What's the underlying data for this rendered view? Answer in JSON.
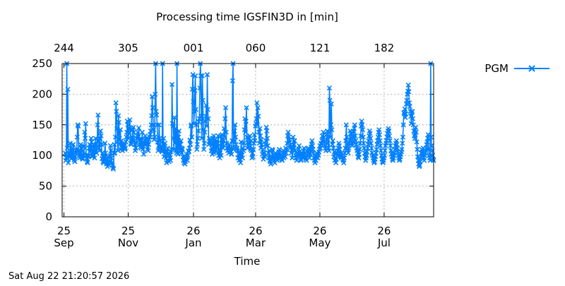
{
  "chart_data": {
    "type": "line",
    "title": "Processing time IGSFIN3D in [min]",
    "xlabel": "Time",
    "ylabel": "",
    "ylim": [
      0,
      250
    ],
    "xlim": [
      -1.7,
      351
    ],
    "x_unit": "days since 2025-09-25",
    "yticks": [
      0,
      50,
      100,
      150,
      200,
      250
    ],
    "x_bottom_ticks": [
      {
        "pos": 0,
        "day": "25",
        "month": "Sep"
      },
      {
        "pos": 61,
        "day": "25",
        "month": "Nov"
      },
      {
        "pos": 123,
        "day": "26",
        "month": "Jan"
      },
      {
        "pos": 182,
        "day": "26",
        "month": "Mar"
      },
      {
        "pos": 243,
        "day": "26",
        "month": "May"
      },
      {
        "pos": 304,
        "day": "26",
        "month": "Jul"
      }
    ],
    "x_top_ticks": [
      {
        "pos": 0,
        "label": "244"
      },
      {
        "pos": 61,
        "label": "305"
      },
      {
        "pos": 123,
        "label": "001"
      },
      {
        "pos": 182,
        "label": "060"
      },
      {
        "pos": 243,
        "label": "121"
      },
      {
        "pos": 304,
        "label": "182"
      }
    ],
    "grid": true,
    "legend": "right",
    "series": [
      {
        "name": "PGM",
        "color": "#0080ff",
        "marker": "x",
        "y": [
          104,
          92,
          96,
          250,
          112,
          208,
          88,
          102,
          97,
          104,
          120,
          100,
          95,
          110,
          112,
          100,
          118,
          96,
          93,
          90,
          98,
          104,
          108,
          110,
          130,
          150,
          148,
          106,
          100,
          96,
          104,
          118,
          112,
          100,
          96,
          94,
          108,
          100,
          115,
          138,
          128,
          152,
          100,
          96,
          90,
          88,
          98,
          100,
          112,
          118,
          106,
          110,
          128,
          122,
          98,
          100,
          105,
          118,
          112,
          96,
          106,
          128,
          118,
          104,
          115,
          150,
          166,
          124,
          112,
          108,
          128,
          140,
          132,
          118,
          95,
          104,
          90,
          88,
          100,
          96,
          120,
          104,
          92,
          86,
          94,
          82,
          98,
          88,
          84,
          90,
          100,
          116,
          108,
          96,
          88,
          84,
          80,
          78,
          104,
          118,
          104,
          130,
          186,
          172,
          144,
          122,
          108,
          165,
          154,
          128,
          118,
          142,
          110,
          124,
          118,
          108,
          112,
          118,
          114,
          120,
          110,
          112,
          122,
          130,
          138,
          156,
          150,
          128,
          136,
          144,
          158,
          142,
          120,
          118,
          126,
          130,
          142,
          146,
          138,
          124,
          118,
          108,
          112,
          120,
          128,
          132,
          138,
          130,
          145,
          126,
          118,
          114,
          128,
          112,
          120,
          138,
          110,
          120,
          102,
          118,
          125,
          132,
          118,
          124,
          128,
          110,
          124,
          108,
          118,
          126,
          130,
          134,
          140,
          150,
          165,
          196,
          178,
          150,
          142,
          126,
          130,
          200,
          250,
          172,
          166,
          150,
          122,
          108,
          116,
          150,
          128,
          124,
          115,
          110,
          108,
          106,
          250,
          118,
          128,
          98,
          112,
          120,
          104,
          96,
          88,
          106,
          112,
          102,
          104,
          90,
          100,
          96,
          92,
          106,
          110,
          216,
          152,
          148,
          128,
          110,
          162,
          120,
          144,
          108,
          104,
          250,
          118,
          102,
          130,
          140,
          112,
          108,
          118,
          124,
          104,
          112,
          110,
          98,
          92,
          88,
          95,
          86,
          90,
          96,
          102,
          98,
          92,
          100,
          108,
          106,
          112,
          125,
          118,
          148,
          150,
          130,
          208,
          232,
          188,
          152,
          172,
          206,
          230,
          175,
          150,
          110,
          118,
          128,
          140,
          155,
          160,
          210,
          250,
          230,
          165,
          128,
          230,
          190,
          142,
          110,
          120,
          138,
          156,
          164,
          182,
          148,
          232,
          175,
          160,
          118,
          128,
          124,
          126,
          120,
          108,
          112,
          102,
          118,
          128,
          132,
          104,
          110,
          126,
          118,
          106,
          124,
          112,
          120,
          132,
          100,
          108,
          96,
          110,
          132,
          100,
          120,
          134,
          118,
          112,
          124,
          144,
          130,
          160,
          178,
          138,
          120,
          112,
          108,
          114,
          104,
          110,
          118,
          110,
          106,
          112,
          102,
          124,
          222,
          250,
          110,
          124,
          140,
          150,
          130,
          118,
          110,
          112,
          108,
          96,
          102,
          92,
          106,
          94,
          88,
          122,
          100,
          106,
          96,
          112,
          108,
          120,
          142,
          160,
          138,
          156,
          178,
          130,
          112,
          122,
          116,
          128,
          120,
          132,
          110,
          124,
          108,
          96,
          104,
          98,
          110,
          120,
          134,
          124,
          148,
          152,
          160,
          186,
          150,
          178,
          164,
          138,
          120,
          144,
          132,
          112,
          126,
          118,
          102,
          110,
          94,
          100,
          104,
          98,
          118,
          124,
          146,
          140,
          128,
          116,
          104,
          96,
          108,
          92,
          90,
          86,
          94,
          98,
          110,
          108,
          100,
          96,
          92,
          88,
          104,
          100,
          94,
          98,
          92,
          96,
          102,
          106,
          110,
          104,
          96,
          100,
          98,
          94,
          92,
          104,
          108,
          96,
          100,
          106,
          98,
          112,
          104,
          110,
          120,
          132,
          138,
          130,
          126,
          122,
          112,
          118,
          104,
          114,
          96,
          110,
          130,
          112,
          118,
          124,
          108,
          100,
          96,
          92,
          104,
          98,
          102,
          110,
          116,
          106,
          100,
          94,
          92,
          98,
          104,
          96,
          100,
          108,
          112,
          104,
          98,
          94,
          96,
          92,
          100,
          106,
          110,
          112,
          104,
          96,
          102,
          108,
          114,
          118,
          124,
          116,
          110,
          104,
          96,
          92,
          88,
          100,
          92,
          104,
          98,
          96,
          102,
          100,
          106,
          110,
          116,
          112,
          120,
          118,
          124,
          132,
          126,
          138,
          130,
          122,
          116,
          112,
          108,
          126,
          134,
          140,
          120,
          112,
          108,
          210,
          190,
          130,
          150,
          184,
          142,
          118,
          124,
          112,
          98,
          106,
          92,
          96,
          88,
          94,
          104,
          100,
          108,
          112,
          120,
          116,
          110,
          102,
          98,
          96,
          104,
          100,
          94,
          92,
          88,
          96,
          104,
          112,
          124,
          150,
          130,
          118,
          110,
          104,
          112,
          120,
          126,
          140,
          136,
          128,
          120,
          116,
          122,
          130,
          138,
          144,
          150,
          132,
          124,
          118,
          112,
          108,
          104,
          98,
          96,
          102,
          110,
          120,
          132,
          148,
          156,
          150,
          142,
          130,
          120,
          112,
          104,
          98,
          92,
          96,
          100,
          106,
          112,
          118,
          124,
          132,
          140,
          136,
          128,
          120,
          112,
          104,
          100,
          96,
          92,
          88,
          90,
          94,
          98,
          104,
          110,
          118,
          124,
          130,
          138,
          142,
          134,
          124,
          116,
          108,
          100,
          94,
          90,
          88,
          92,
          96,
          100,
          108,
          116,
          120,
          124,
          130,
          136,
          140,
          144,
          140,
          132,
          124,
          116,
          108,
          102,
          98,
          94,
          92,
          96,
          100,
          104,
          110,
          116,
          120,
          124,
          118,
          112,
          106,
          100,
          96,
          92,
          94,
          98,
          102,
          106,
          110,
          120,
          130,
          150,
          170,
          168,
          176,
          162,
          168,
          184,
          190,
          200,
          205,
          215,
          204,
          186,
          180,
          172,
          164,
          152,
          170,
          172,
          160,
          150,
          140,
          132,
          128,
          134,
          146,
          138,
          122,
          110,
          98,
          92,
          86,
          82,
          84,
          90,
          96,
          104,
          110,
          98,
          104,
          112,
          96,
          92,
          100,
          104,
          108,
          112,
          118,
          122,
          128,
          134,
          110,
          100,
          96,
          92,
          250,
          130,
          116,
          108,
          100,
          94,
          92
        ]
      }
    ],
    "legend_entries": [
      "PGM"
    ],
    "timestamp": "Sat Aug 22 21:20:57 2026"
  }
}
